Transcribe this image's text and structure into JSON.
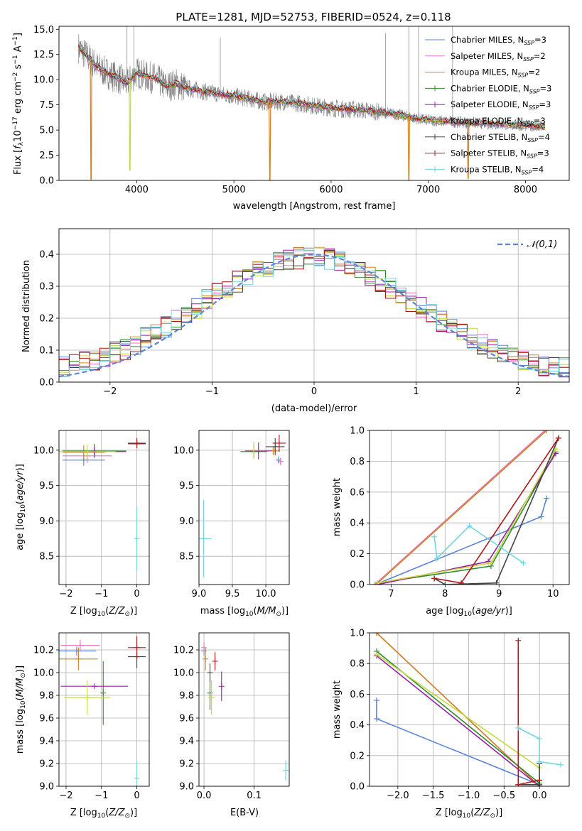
{
  "colors": {
    "Chabrier MILES": "#5b84d6",
    "Salpeter MILES": "#e377c2",
    "Kroupa MILES": "#d4821f",
    "Chabrier ELODIE": "#2e8b2e",
    "Salpeter ELODIE": "#9a1fa8",
    "Kroupa ELODIE": "#c5d93a",
    "Chabrier STELIB": "#444444",
    "Salpeter STELIB": "#b01515",
    "Kroupa STELIB": "#6fd6de",
    "grid": "#b0b0b0",
    "spectrum": "#7f7f7f"
  },
  "chart_data": [
    {
      "id": "spectrum",
      "type": "line",
      "title": "PLATE=1281, MJD=52753, FIBERID=0524, z=0.118",
      "xlabel": "wavelength [Angstrom, rest frame]",
      "ylabel": "Flux [fλ10⁻¹⁷ erg cm⁻² s⁻¹ A⁻¹]",
      "xlim": [
        3200,
        8450
      ],
      "ylim": [
        0,
        15.3
      ],
      "xticks": [
        4000,
        5000,
        6000,
        7000,
        8000
      ],
      "yticks": [
        0.0,
        2.5,
        5.0,
        7.5,
        10.0,
        12.5,
        15.0
      ],
      "legend_position": "top-right",
      "legend": [
        {
          "model": "Chabrier MILES",
          "label_pre": "Chabrier MILES, N",
          "sub": "SSP",
          "label_post": "=3"
        },
        {
          "model": "Salpeter MILES",
          "label_pre": "Salpeter MILES, N",
          "sub": "SSP",
          "label_post": "=2"
        },
        {
          "model": "Kroupa MILES",
          "label_pre": "Kroupa MILES, N",
          "sub": "SSP",
          "label_post": "=2"
        },
        {
          "model": "Chabrier ELODIE",
          "label_pre": "Chabrier ELODIE, N",
          "sub": "SSP",
          "label_post": "=3"
        },
        {
          "model": "Salpeter ELODIE",
          "label_pre": "Salpeter ELODIE, N",
          "sub": "SSP",
          "label_post": "=3"
        },
        {
          "model": "Kroupa ELODIE",
          "label_pre": "Kroupa ELODIE, N",
          "sub": "SSP",
          "label_post": "=3"
        },
        {
          "model": "Chabrier STELIB",
          "label_pre": "Chabrier STELIB, N",
          "sub": "SSP",
          "label_post": "=4"
        },
        {
          "model": "Salpeter STELIB",
          "label_pre": "Salpeter STELIB, N",
          "sub": "SSP",
          "label_post": "=3"
        },
        {
          "model": "Kroupa STELIB",
          "label_pre": "Kroupa STELIB, N",
          "sub": "SSP",
          "label_post": "=4"
        }
      ],
      "continuum": [
        [
          3400,
          13.2
        ],
        [
          3500,
          12.2
        ],
        [
          3600,
          11.2
        ],
        [
          3700,
          10.6
        ],
        [
          3800,
          10.2
        ],
        [
          3900,
          9.6
        ],
        [
          4000,
          10.7
        ],
        [
          4100,
          10.3
        ],
        [
          4200,
          10.1
        ],
        [
          4300,
          9.3
        ],
        [
          4400,
          9.6
        ],
        [
          4500,
          9.2
        ],
        [
          4700,
          8.8
        ],
        [
          4900,
          8.5
        ],
        [
          5100,
          8.2
        ],
        [
          5300,
          7.8
        ],
        [
          5500,
          7.8
        ],
        [
          5700,
          7.6
        ],
        [
          5900,
          7.3
        ],
        [
          6100,
          7.1
        ],
        [
          6300,
          7.0
        ],
        [
          6500,
          6.8
        ],
        [
          6700,
          6.5
        ],
        [
          6900,
          6.1
        ],
        [
          7100,
          5.9
        ],
        [
          7300,
          5.8
        ],
        [
          7500,
          5.7
        ],
        [
          7700,
          5.6
        ],
        [
          7900,
          5.5
        ],
        [
          8100,
          5.4
        ],
        [
          8200,
          5.3
        ]
      ],
      "absorption_dips": [
        [
          3530,
          0.1
        ],
        [
          3930,
          1.0
        ],
        [
          5370,
          0.0
        ],
        [
          6800,
          0.0
        ],
        [
          7410,
          0.2
        ]
      ],
      "noise_spikes": [
        [
          3900,
          15.3
        ],
        [
          3970,
          15.3
        ],
        [
          4860,
          14.2
        ],
        [
          6560,
          14.6
        ],
        [
          6800,
          15.3
        ],
        [
          6900,
          15.3
        ],
        [
          7250,
          15.3
        ]
      ]
    },
    {
      "id": "residuals",
      "type": "bar",
      "xlabel": "(data-model)/error",
      "ylabel": "Normed distribution",
      "xlim": [
        -2.5,
        2.5
      ],
      "ylim": [
        0,
        0.48
      ],
      "xticks": [
        -2,
        -1,
        0,
        1,
        2
      ],
      "yticks": [
        0.0,
        0.1,
        0.2,
        0.3,
        0.4
      ],
      "legend_position": "top-right",
      "gaussian_label": "𝒩(0,1)",
      "bin_width": 0.1
    },
    {
      "id": "age-vs-Z",
      "type": "scatter",
      "xlabel": "Z [log10(Z/Z⊙)]",
      "ylabel": "age [log10(age/yr)]",
      "xlim": [
        -2.2,
        0.35
      ],
      "ylim": [
        8.1,
        10.28
      ],
      "xticks": [
        -2,
        -1,
        0
      ],
      "yticks": [
        8.5,
        9.0,
        9.5,
        10.0
      ],
      "errorbars": [
        {
          "model": "Chabrier MILES",
          "x": -1.5,
          "xerr": 0.6,
          "y": 9.86,
          "yerr": 0.08
        },
        {
          "model": "Salpeter MILES",
          "x": -1.4,
          "xerr": 0.7,
          "y": 9.92,
          "yerr": 0.1
        },
        {
          "model": "Kroupa MILES",
          "x": -1.5,
          "xerr": 0.6,
          "y": 9.97,
          "yerr": 0.1
        },
        {
          "model": "Chabrier ELODIE",
          "x": -1.2,
          "xerr": 0.9,
          "y": 9.99,
          "yerr": 0.1
        },
        {
          "model": "Salpeter ELODIE",
          "x": -1.2,
          "xerr": 0.9,
          "y": 9.98,
          "yerr": 0.08
        },
        {
          "model": "Kroupa ELODIE",
          "x": -1.4,
          "xerr": 0.8,
          "y": 9.98,
          "yerr": 0.1
        },
        {
          "model": "Chabrier STELIB",
          "x": 0.0,
          "xerr": 0.25,
          "y": 10.09,
          "yerr": 0.06
        },
        {
          "model": "Salpeter STELIB",
          "x": 0.0,
          "xerr": 0.25,
          "y": 10.1,
          "yerr": 0.07
        },
        {
          "model": "Kroupa STELIB",
          "x": 0.0,
          "xerr": 0.05,
          "y": 8.75,
          "yerr": 0.45
        }
      ]
    },
    {
      "id": "age-vs-mass",
      "type": "scatter",
      "xlabel": "mass [log10(M/M⊙)]",
      "ylabel": "",
      "xlim": [
        9.0,
        10.35
      ],
      "ylim": [
        8.1,
        10.28
      ],
      "xticks": [
        9.0,
        9.5,
        10.0
      ],
      "yticks": [
        8.5,
        9.0,
        9.5,
        10.0
      ],
      "errorbars": [
        {
          "model": "Chabrier MILES",
          "x": 10.19,
          "xerr": 0.03,
          "y": 9.86,
          "yerr": 0.05
        },
        {
          "model": "Salpeter MILES",
          "x": 10.22,
          "xerr": 0.04,
          "y": 9.84,
          "yerr": 0.05
        },
        {
          "model": "Kroupa MILES",
          "x": 10.11,
          "xerr": 0.1,
          "y": 9.99,
          "yerr": 0.06
        },
        {
          "model": "Chabrier ELODIE",
          "x": 9.82,
          "xerr": 0.2,
          "y": 9.98,
          "yerr": 0.1
        },
        {
          "model": "Salpeter ELODIE",
          "x": 9.89,
          "xerr": 0.2,
          "y": 9.99,
          "yerr": 0.12
        },
        {
          "model": "Kroupa ELODIE",
          "x": 9.82,
          "xerr": 0.14,
          "y": 10.0,
          "yerr": 0.12
        },
        {
          "model": "Chabrier STELIB",
          "x": 10.14,
          "xerr": 0.14,
          "y": 10.05,
          "yerr": 0.12
        },
        {
          "model": "Salpeter STELIB",
          "x": 10.2,
          "xerr": 0.1,
          "y": 10.1,
          "yerr": 0.12
        },
        {
          "model": "Kroupa STELIB",
          "x": 9.07,
          "xerr": 0.12,
          "y": 8.75,
          "yerr": 0.55
        }
      ]
    },
    {
      "id": "weight-vs-age",
      "type": "line",
      "xlabel": "age [log10(age/yr)]",
      "ylabel": "mass weight",
      "xlim": [
        6.6,
        10.3
      ],
      "ylim": [
        0,
        1
      ],
      "xticks": [
        7,
        8,
        9,
        10
      ],
      "yticks": [
        0.0,
        0.2,
        0.4,
        0.6,
        0.8,
        1.0
      ],
      "series": [
        {
          "model": "Chabrier MILES",
          "points": [
            [
              6.78,
              0.01
            ],
            [
              9.78,
              0.44
            ],
            [
              9.88,
              0.56
            ]
          ]
        },
        {
          "model": "Salpeter MILES",
          "points": [
            [
              6.7,
              0.0
            ],
            [
              9.85,
              1.0
            ]
          ]
        },
        {
          "model": "Kroupa MILES",
          "points": [
            [
              6.72,
              0.0
            ],
            [
              9.88,
              1.0
            ]
          ]
        },
        {
          "model": "Chabrier ELODIE",
          "points": [
            [
              6.75,
              0.01
            ],
            [
              8.85,
              0.12
            ],
            [
              10.05,
              0.86
            ]
          ]
        },
        {
          "model": "Salpeter ELODIE",
          "points": [
            [
              6.75,
              0.0
            ],
            [
              8.8,
              0.15
            ],
            [
              10.05,
              0.85
            ]
          ]
        },
        {
          "model": "Kroupa ELODIE",
          "points": [
            [
              6.75,
              0.01
            ],
            [
              8.85,
              0.14
            ],
            [
              10.05,
              0.88
            ]
          ]
        },
        {
          "model": "Chabrier STELIB",
          "points": [
            [
              7.8,
              0.04
            ],
            [
              8.0,
              0.0
            ],
            [
              8.95,
              0.01
            ],
            [
              10.1,
              0.95
            ]
          ]
        },
        {
          "model": "Salpeter STELIB",
          "points": [
            [
              7.8,
              0.04
            ],
            [
              8.3,
              0.01
            ],
            [
              10.1,
              0.95
            ]
          ]
        },
        {
          "model": "Kroupa STELIB",
          "points": [
            [
              7.8,
              0.31
            ],
            [
              7.85,
              0.17
            ],
            [
              8.45,
              0.38
            ],
            [
              9.45,
              0.14
            ]
          ]
        }
      ]
    },
    {
      "id": "mass-vs-Z",
      "type": "scatter",
      "xlabel": "Z [log10(Z/Z⊙)]",
      "ylabel": "mass [log10(M/M⊙)]",
      "xlim": [
        -2.2,
        0.35
      ],
      "ylim": [
        9.0,
        10.35
      ],
      "xticks": [
        -2,
        -1,
        0
      ],
      "yticks": [
        9.0,
        9.2,
        9.4,
        9.6,
        9.8,
        10.0,
        10.2
      ],
      "errorbars": [
        {
          "model": "Chabrier MILES",
          "x": -1.7,
          "xerr": 0.55,
          "y": 10.19,
          "yerr": 0.04
        },
        {
          "model": "Salpeter MILES",
          "x": -1.6,
          "xerr": 0.55,
          "y": 10.24,
          "yerr": 0.05
        },
        {
          "model": "Kroupa MILES",
          "x": -1.65,
          "xerr": 0.55,
          "y": 10.12,
          "yerr": 0.1
        },
        {
          "model": "Chabrier ELODIE",
          "x": -0.95,
          "xerr": 0.0,
          "y": 9.82,
          "yerr": 0.28
        },
        {
          "model": "Salpeter ELODIE",
          "x": -1.2,
          "xerr": 0.95,
          "y": 9.88,
          "yerr": 0.0
        },
        {
          "model": "Kroupa ELODIE",
          "x": -1.4,
          "xerr": 0.65,
          "y": 9.78,
          "yerr": 0.15
        },
        {
          "model": "Chabrier STELIB",
          "x": 0.0,
          "xerr": 0.25,
          "y": 10.14,
          "yerr": 0.1
        },
        {
          "model": "Salpeter STELIB",
          "x": 0.0,
          "xerr": 0.25,
          "y": 10.22,
          "yerr": 0.1
        },
        {
          "model": "Kroupa STELIB",
          "x": 0.0,
          "xerr": 0.05,
          "y": 9.07,
          "yerr": 0.15
        }
      ]
    },
    {
      "id": "mass-vs-ebv",
      "type": "scatter",
      "xlabel": "E(B-V)",
      "ylabel": "",
      "xlim": [
        -0.01,
        0.17
      ],
      "ylim": [
        9.0,
        10.35
      ],
      "xticks": [
        0.0,
        0.1
      ],
      "yticks": [
        9.0,
        9.2,
        9.4,
        9.6,
        9.8,
        10.0,
        10.2
      ],
      "errorbars": [
        {
          "model": "Chabrier MILES",
          "x": 0.0,
          "y": 10.19,
          "yerr": 0.04
        },
        {
          "model": "Salpeter MILES",
          "x": 0.0,
          "y": 10.22,
          "yerr": 0.05
        },
        {
          "model": "Kroupa MILES",
          "x": 0.003,
          "y": 10.12,
          "yerr": 0.1
        },
        {
          "model": "Chabrier ELODIE",
          "x": 0.012,
          "y": 9.82,
          "yerr": 0.15
        },
        {
          "model": "Salpeter ELODIE",
          "x": 0.035,
          "y": 9.88,
          "yerr": 0.13
        },
        {
          "model": "Kroupa ELODIE",
          "x": 0.015,
          "y": 9.78,
          "yerr": 0.15
        },
        {
          "model": "Chabrier STELIB",
          "x": 0.012,
          "y": 10.0,
          "yerr": 0.08
        },
        {
          "model": "Salpeter STELIB",
          "x": 0.022,
          "y": 10.1,
          "yerr": 0.08
        },
        {
          "model": "Kroupa STELIB",
          "x": 0.163,
          "y": 9.14,
          "yerr": 0.09
        }
      ]
    },
    {
      "id": "weight-vs-Z",
      "type": "line",
      "xlabel": "Z [log10(Z/Z⊙)]",
      "ylabel": "mass weight",
      "xlim": [
        -2.4,
        0.42
      ],
      "ylim": [
        0,
        1
      ],
      "xticks": [
        -2.0,
        -1.5,
        -1.0,
        -0.5,
        0.0
      ],
      "yticks": [
        0.0,
        0.2,
        0.4,
        0.6,
        0.8,
        1.0
      ],
      "series": [
        {
          "model": "Chabrier MILES",
          "points": [
            [
              -2.3,
              0.56
            ],
            [
              -2.3,
              0.44
            ],
            [
              0.0,
              0.01
            ]
          ]
        },
        {
          "model": "Salpeter MILES",
          "points": [
            [
              -2.3,
              1.0
            ],
            [
              0.0,
              0.0
            ]
          ]
        },
        {
          "model": "Kroupa MILES",
          "points": [
            [
              -2.3,
              1.0
            ],
            [
              0.0,
              0.0
            ]
          ]
        },
        {
          "model": "Chabrier ELODIE",
          "points": [
            [
              -2.3,
              0.88
            ],
            [
              0.0,
              0.02
            ]
          ]
        },
        {
          "model": "Salpeter ELODIE",
          "points": [
            [
              -2.3,
              0.85
            ],
            [
              0.0,
              0.0
            ]
          ]
        },
        {
          "model": "Kroupa ELODIE",
          "points": [
            [
              -2.3,
              0.86
            ],
            [
              0.0,
              0.12
            ]
          ]
        },
        {
          "model": "Chabrier STELIB",
          "points": [
            [
              -0.3,
              0.01
            ],
            [
              0.0,
              0.01
            ],
            [
              0.0,
              0.15
            ]
          ]
        },
        {
          "model": "Salpeter STELIB",
          "points": [
            [
              -0.3,
              0.95
            ],
            [
              -0.3,
              0.01
            ],
            [
              0.0,
              0.04
            ]
          ]
        },
        {
          "model": "Kroupa STELIB",
          "points": [
            [
              -0.3,
              0.38
            ],
            [
              0.0,
              0.31
            ],
            [
              0.0,
              0.16
            ],
            [
              0.3,
              0.14
            ]
          ]
        }
      ]
    }
  ]
}
